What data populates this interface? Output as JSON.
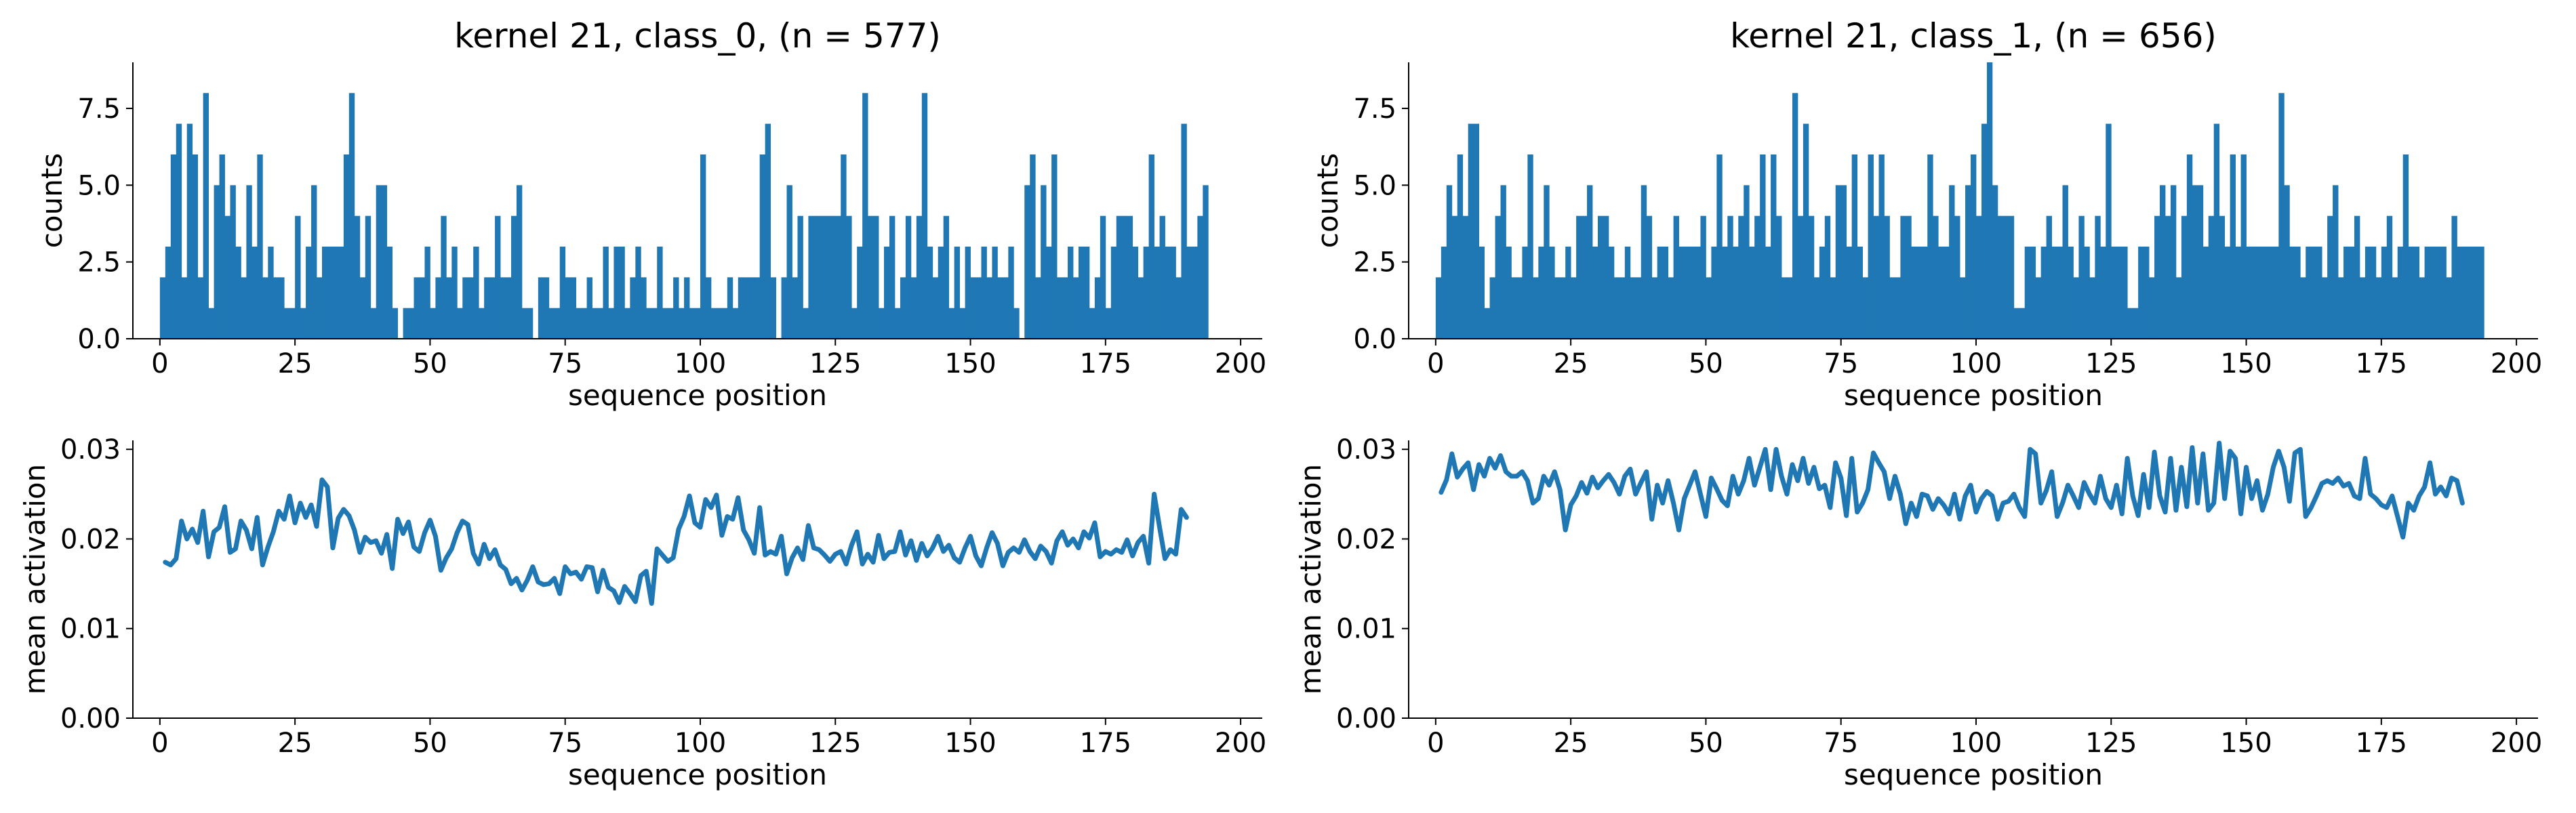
{
  "chart_data": [
    {
      "id": "hist0",
      "type": "bar",
      "title": "kernel 21, class_0, (n = 577)",
      "xlabel": "sequence position",
      "ylabel": "counts",
      "xlim": [
        -5,
        204
      ],
      "ylim": [
        0,
        9
      ],
      "xticks": [
        0,
        25,
        50,
        75,
        100,
        125,
        150,
        175,
        200
      ],
      "xtick_labels": [
        "0",
        "25",
        "50",
        "75",
        "100",
        "125",
        "150",
        "175",
        "200"
      ],
      "yticks": [
        0.0,
        2.5,
        5.0,
        7.5
      ],
      "ytick_labels": [
        "0.0",
        "2.5",
        "5.0",
        "7.5"
      ],
      "bar_start": 0,
      "bar_width": 1,
      "values": [
        2,
        3,
        6,
        7,
        2,
        7,
        6,
        2,
        8,
        1,
        5,
        6,
        4,
        5,
        3,
        2,
        5,
        3,
        6,
        2,
        3,
        2,
        2,
        1,
        1,
        4,
        1,
        3,
        5,
        2,
        3,
        3,
        3,
        3,
        6,
        8,
        4,
        2,
        4,
        1,
        5,
        5,
        3,
        1,
        0,
        1,
        1,
        2,
        2,
        3,
        1,
        2,
        4,
        2,
        3,
        1,
        2,
        2,
        3,
        1,
        2,
        2,
        4,
        2,
        2,
        4,
        5,
        1,
        1,
        0,
        2,
        2,
        1,
        1,
        3,
        2,
        2,
        1,
        1,
        2,
        1,
        1,
        3,
        1,
        3,
        3,
        1,
        2,
        3,
        2,
        1,
        1,
        3,
        1,
        1,
        2,
        1,
        2,
        1,
        1,
        6,
        2,
        1,
        1,
        1,
        2,
        1,
        2,
        2,
        2,
        2,
        6,
        7,
        2,
        0,
        2,
        5,
        2,
        4,
        1,
        4,
        4,
        4,
        4,
        4,
        4,
        6,
        4,
        1,
        3,
        8,
        4,
        4,
        1,
        3,
        4,
        1,
        2,
        4,
        2,
        4,
        8,
        3,
        2,
        3,
        4,
        1,
        3,
        1,
        3,
        2,
        2,
        3,
        2,
        3,
        2,
        2,
        3,
        1,
        0,
        5,
        6,
        2,
        5,
        3,
        6,
        2,
        2,
        3,
        2,
        3,
        3,
        1,
        2,
        4,
        1,
        3,
        4,
        4,
        4,
        3,
        2,
        3,
        6,
        3,
        4,
        3,
        3,
        2,
        7,
        3,
        3,
        4,
        5
      ],
      "color": "#1f77b4",
      "grid": false
    },
    {
      "id": "hist1",
      "type": "bar",
      "title": "kernel 21, class_1, (n = 656)",
      "xlabel": "sequence position",
      "ylabel": "counts",
      "xlim": [
        -5,
        204
      ],
      "ylim": [
        0,
        9
      ],
      "xticks": [
        0,
        25,
        50,
        75,
        100,
        125,
        150,
        175,
        200
      ],
      "xtick_labels": [
        "0",
        "25",
        "50",
        "75",
        "100",
        "125",
        "150",
        "175",
        "200"
      ],
      "yticks": [
        0.0,
        2.5,
        5.0,
        7.5
      ],
      "ytick_labels": [
        "0.0",
        "2.5",
        "5.0",
        "7.5"
      ],
      "bar_start": 0,
      "bar_width": 1,
      "values": [
        2,
        3,
        5,
        4,
        6,
        4,
        7,
        7,
        3,
        1,
        2,
        4,
        5,
        3,
        2,
        2,
        3,
        6,
        2,
        3,
        5,
        3,
        2,
        2,
        3,
        2,
        4,
        4,
        5,
        3,
        4,
        4,
        3,
        2,
        2,
        3,
        2,
        2,
        5,
        4,
        2,
        3,
        3,
        2,
        4,
        3,
        3,
        3,
        3,
        4,
        2,
        3,
        6,
        3,
        4,
        3,
        4,
        5,
        3,
        4,
        6,
        3,
        6,
        4,
        2,
        2,
        8,
        4,
        7,
        4,
        2,
        3,
        4,
        2,
        5,
        5,
        3,
        6,
        3,
        2,
        6,
        4,
        6,
        4,
        2,
        2,
        4,
        4,
        3,
        3,
        3,
        6,
        4,
        3,
        3,
        5,
        4,
        2,
        5,
        6,
        4,
        7,
        9,
        5,
        4,
        4,
        4,
        1,
        1,
        3,
        3,
        2,
        3,
        4,
        3,
        3,
        5,
        3,
        2,
        4,
        3,
        2,
        4,
        3,
        7,
        3,
        3,
        3,
        1,
        1,
        3,
        3,
        2,
        4,
        5,
        4,
        5,
        2,
        4,
        6,
        5,
        5,
        3,
        4,
        7,
        4,
        3,
        6,
        3,
        6,
        3,
        3,
        3,
        3,
        3,
        3,
        8,
        5,
        3,
        3,
        2,
        3,
        3,
        3,
        2,
        4,
        5,
        2,
        3,
        3,
        4,
        2,
        3,
        3,
        2,
        3,
        4,
        2,
        3,
        6,
        3,
        3,
        2,
        3,
        3,
        3,
        3,
        2,
        4,
        3,
        3,
        3,
        3,
        3
      ],
      "color": "#1f77b4",
      "grid": false
    },
    {
      "id": "line0",
      "type": "line",
      "title": "",
      "xlabel": "sequence position",
      "ylabel": "mean activation",
      "xlim": [
        -5,
        204
      ],
      "ylim": [
        0,
        0.031
      ],
      "xticks": [
        0,
        25,
        50,
        75,
        100,
        125,
        150,
        175,
        200
      ],
      "xtick_labels": [
        "0",
        "25",
        "50",
        "75",
        "100",
        "125",
        "150",
        "175",
        "200"
      ],
      "yticks": [
        0.0,
        0.01,
        0.02,
        0.03
      ],
      "ytick_labels": [
        "0.00",
        "0.01",
        "0.02",
        "0.03"
      ],
      "x_start": 1,
      "y": [
        0.0174,
        0.0171,
        0.0178,
        0.022,
        0.02,
        0.0211,
        0.0196,
        0.0231,
        0.018,
        0.0208,
        0.0213,
        0.0236,
        0.0185,
        0.0189,
        0.022,
        0.021,
        0.0189,
        0.0224,
        0.0171,
        0.0191,
        0.0208,
        0.0231,
        0.0222,
        0.0248,
        0.0218,
        0.024,
        0.0224,
        0.0238,
        0.0214,
        0.0266,
        0.0258,
        0.019,
        0.0223,
        0.0233,
        0.0226,
        0.021,
        0.0185,
        0.0202,
        0.0196,
        0.0198,
        0.0184,
        0.0205,
        0.0167,
        0.0222,
        0.0206,
        0.0219,
        0.0191,
        0.0186,
        0.0207,
        0.0221,
        0.0203,
        0.0165,
        0.0179,
        0.0189,
        0.0207,
        0.022,
        0.0216,
        0.0184,
        0.0172,
        0.0194,
        0.0178,
        0.0188,
        0.0171,
        0.0166,
        0.015,
        0.0156,
        0.0143,
        0.0154,
        0.0169,
        0.0152,
        0.0149,
        0.015,
        0.0156,
        0.0139,
        0.0169,
        0.0161,
        0.0163,
        0.0155,
        0.0169,
        0.0168,
        0.0141,
        0.0165,
        0.0146,
        0.0142,
        0.0129,
        0.0147,
        0.0139,
        0.013,
        0.0159,
        0.0164,
        0.0128,
        0.0189,
        0.0182,
        0.0175,
        0.0179,
        0.0211,
        0.0225,
        0.0248,
        0.0218,
        0.0213,
        0.0244,
        0.0235,
        0.0249,
        0.0204,
        0.0225,
        0.0222,
        0.0246,
        0.021,
        0.0199,
        0.0184,
        0.0235,
        0.0182,
        0.0186,
        0.0183,
        0.0203,
        0.0161,
        0.0179,
        0.019,
        0.0177,
        0.0215,
        0.019,
        0.0188,
        0.0182,
        0.0175,
        0.0183,
        0.0186,
        0.0172,
        0.0193,
        0.0208,
        0.0172,
        0.0183,
        0.0174,
        0.0204,
        0.0178,
        0.0185,
        0.0186,
        0.0208,
        0.0182,
        0.0198,
        0.0176,
        0.0195,
        0.0181,
        0.019,
        0.0203,
        0.0186,
        0.0193,
        0.0179,
        0.0174,
        0.019,
        0.0203,
        0.0181,
        0.017,
        0.019,
        0.0207,
        0.0195,
        0.017,
        0.0185,
        0.019,
        0.0185,
        0.0199,
        0.0186,
        0.0178,
        0.0192,
        0.0186,
        0.0173,
        0.0198,
        0.0208,
        0.0193,
        0.02,
        0.019,
        0.0208,
        0.0201,
        0.0218,
        0.018,
        0.0186,
        0.0183,
        0.0188,
        0.0185,
        0.0199,
        0.0181,
        0.0196,
        0.0203,
        0.0173,
        0.025,
        0.0213,
        0.0178,
        0.0188,
        0.0183,
        0.0233,
        0.0224
      ],
      "color": "#1f77b4",
      "grid": false
    },
    {
      "id": "line1",
      "type": "line",
      "title": "",
      "xlabel": "sequence position",
      "ylabel": "mean activation",
      "xlim": [
        -5,
        204
      ],
      "ylim": [
        0,
        0.031
      ],
      "xticks": [
        0,
        25,
        50,
        75,
        100,
        125,
        150,
        175,
        200
      ],
      "xtick_labels": [
        "0",
        "25",
        "50",
        "75",
        "100",
        "125",
        "150",
        "175",
        "200"
      ],
      "yticks": [
        0.0,
        0.01,
        0.02,
        0.03
      ],
      "ytick_labels": [
        "0.00",
        "0.01",
        "0.02",
        "0.03"
      ],
      "x_start": 1,
      "y": [
        0.0252,
        0.0266,
        0.0295,
        0.0269,
        0.0278,
        0.0285,
        0.0255,
        0.0283,
        0.027,
        0.029,
        0.0279,
        0.0293,
        0.0275,
        0.027,
        0.027,
        0.0275,
        0.0265,
        0.024,
        0.0245,
        0.027,
        0.026,
        0.0275,
        0.0255,
        0.021,
        0.0238,
        0.0248,
        0.0263,
        0.0251,
        0.0269,
        0.0257,
        0.0265,
        0.0272,
        0.0263,
        0.025,
        0.027,
        0.0278,
        0.025,
        0.0263,
        0.0275,
        0.0222,
        0.026,
        0.024,
        0.0265,
        0.024,
        0.021,
        0.0245,
        0.026,
        0.0275,
        0.025,
        0.0225,
        0.0268,
        0.0256,
        0.0243,
        0.0237,
        0.027,
        0.025,
        0.0265,
        0.029,
        0.026,
        0.028,
        0.03,
        0.0255,
        0.03,
        0.027,
        0.025,
        0.0283,
        0.0265,
        0.029,
        0.0262,
        0.028,
        0.0256,
        0.026,
        0.0235,
        0.0285,
        0.0268,
        0.0226,
        0.029,
        0.023,
        0.024,
        0.0255,
        0.0296,
        0.0285,
        0.0275,
        0.0245,
        0.027,
        0.025,
        0.0217,
        0.024,
        0.0225,
        0.025,
        0.0248,
        0.0233,
        0.0245,
        0.0238,
        0.0228,
        0.025,
        0.0222,
        0.0248,
        0.026,
        0.023,
        0.0245,
        0.0253,
        0.0248,
        0.0222,
        0.024,
        0.0242,
        0.025,
        0.0235,
        0.0225,
        0.03,
        0.0295,
        0.024,
        0.0254,
        0.0275,
        0.0225,
        0.024,
        0.026,
        0.0248,
        0.0235,
        0.0263,
        0.025,
        0.024,
        0.027,
        0.0245,
        0.0235,
        0.026,
        0.0228,
        0.029,
        0.0248,
        0.0226,
        0.0272,
        0.0235,
        0.0297,
        0.0248,
        0.023,
        0.029,
        0.0232,
        0.028,
        0.0236,
        0.0302,
        0.024,
        0.0295,
        0.0232,
        0.024,
        0.0307,
        0.0245,
        0.0298,
        0.029,
        0.0228,
        0.028,
        0.0245,
        0.0265,
        0.0232,
        0.025,
        0.028,
        0.0298,
        0.028,
        0.0242,
        0.0296,
        0.03,
        0.0225,
        0.0235,
        0.0248,
        0.0262,
        0.0265,
        0.0262,
        0.0268,
        0.0259,
        0.0262,
        0.0248,
        0.0245,
        0.029,
        0.025,
        0.0245,
        0.0238,
        0.0235,
        0.0248,
        0.0225,
        0.0202,
        0.024,
        0.0232,
        0.0248,
        0.0258,
        0.0285,
        0.025,
        0.0258,
        0.0248,
        0.0268,
        0.0265,
        0.024
      ],
      "color": "#1f77b4",
      "grid": false
    }
  ]
}
